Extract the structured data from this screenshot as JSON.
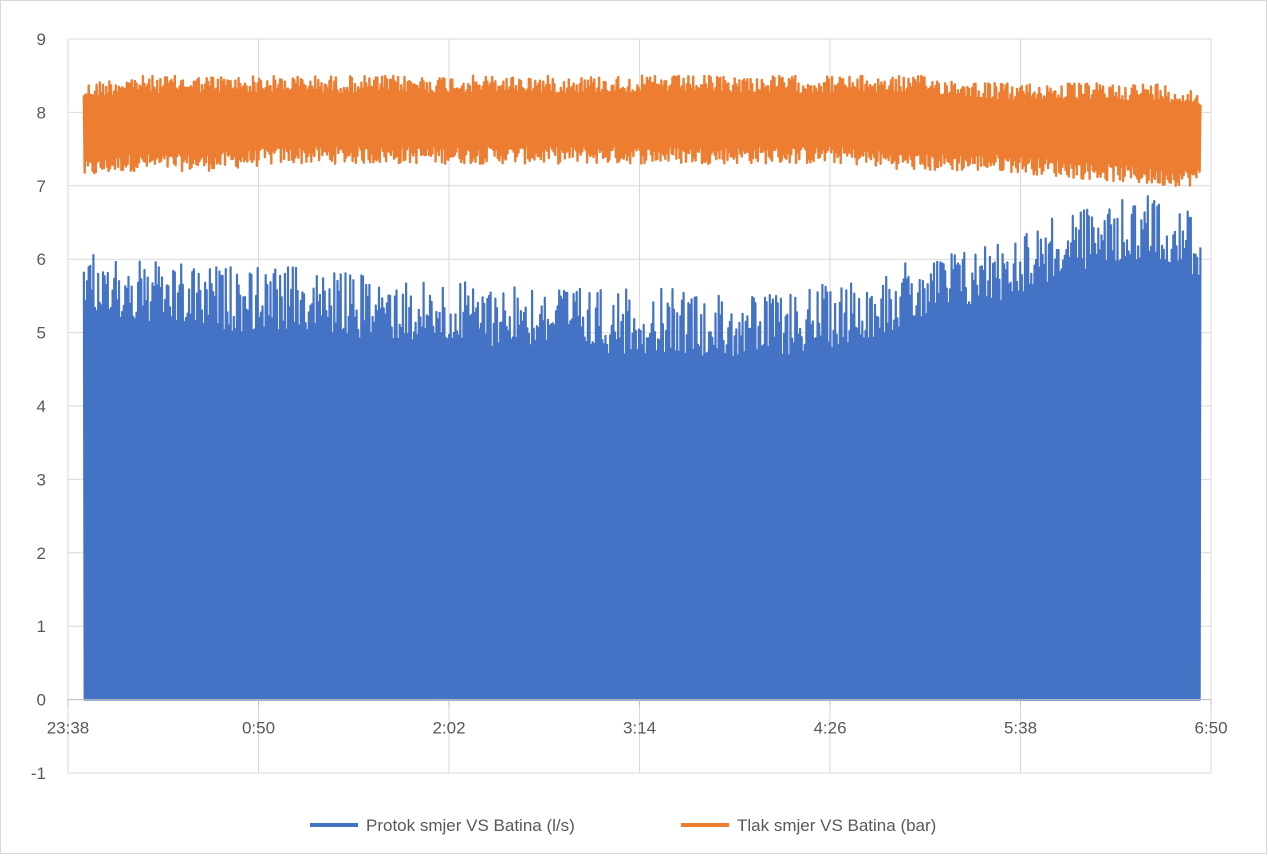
{
  "chart_data": {
    "type": "line",
    "title": "",
    "xlabel": "",
    "ylabel": "",
    "ylim": [
      -1,
      9
    ],
    "y_ticks": [
      "9",
      "8",
      "7",
      "6",
      "5",
      "4",
      "3",
      "2",
      "1",
      "0",
      "-1"
    ],
    "x_tick_labels": [
      "23:38",
      "0:50",
      "2:02",
      "3:14",
      "4:26",
      "5:38",
      "6:50"
    ],
    "x_range_minutes": [
      -22,
      410
    ],
    "grid": "horizontal and vertical",
    "legend_position": "bottom",
    "series": [
      {
        "name": "Protok smjer VS Batina (l/s)",
        "color": "#4472c4",
        "style": "dense oscillation between 0 and the peak envelope",
        "x": [
          "23:44",
          "0:00",
          "0:30",
          "1:00",
          "1:30",
          "2:00",
          "2:30",
          "3:00",
          "3:30",
          "4:00",
          "4:30",
          "5:00",
          "5:30",
          "6:00",
          "6:30",
          "6:46"
        ],
        "peak": [
          6.1,
          6.0,
          5.9,
          5.9,
          5.8,
          5.7,
          5.7,
          5.6,
          5.6,
          5.5,
          5.7,
          6.0,
          6.3,
          6.7,
          6.9,
          6.6
        ],
        "trough": [
          0,
          0,
          0,
          0,
          0,
          0,
          0,
          0,
          0,
          0,
          0,
          0,
          0,
          0,
          0,
          0
        ]
      },
      {
        "name": "Tlak smjer VS Batina (bar)",
        "color": "#ed7d31",
        "style": "dense oscillation between trough and peak envelope",
        "x": [
          "23:44",
          "0:00",
          "0:30",
          "1:00",
          "1:30",
          "2:00",
          "2:30",
          "3:00",
          "3:30",
          "4:00",
          "4:30",
          "5:00",
          "5:30",
          "6:00",
          "6:30",
          "6:46"
        ],
        "peak": [
          8.4,
          8.5,
          8.5,
          8.5,
          8.5,
          8.5,
          8.5,
          8.5,
          8.5,
          8.5,
          8.5,
          8.5,
          8.4,
          8.4,
          8.4,
          8.3
        ],
        "trough": [
          7.1,
          7.2,
          7.2,
          7.3,
          7.3,
          7.3,
          7.3,
          7.3,
          7.3,
          7.3,
          7.3,
          7.2,
          7.2,
          7.1,
          7.0,
          7.0
        ]
      }
    ]
  }
}
